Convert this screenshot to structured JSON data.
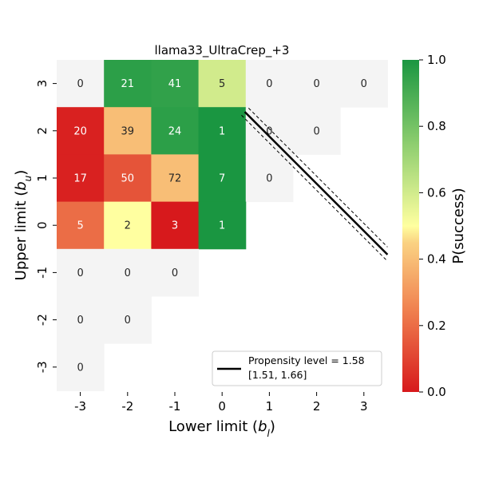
{
  "chart_data": {
    "type": "heatmap",
    "title": "llama33_UltraCrep_+3",
    "xlabel": "Lower limit (b_l)",
    "ylabel": "Upper limit (b_u)",
    "x_categories": [
      "-3",
      "-2",
      "-1",
      "0",
      "1",
      "2",
      "3"
    ],
    "y_categories": [
      "3",
      "2",
      "1",
      "0",
      "-1",
      "-2",
      "-3"
    ],
    "colorbar": {
      "label": "P(success)",
      "range": [
        0.0,
        1.0
      ],
      "ticks": [
        "0.0",
        "0.2",
        "0.4",
        "0.6",
        "0.8",
        "1.0"
      ],
      "colormap": "RdYlGn"
    },
    "cells": [
      {
        "x": "-3",
        "y": "3",
        "count": 0,
        "p": null
      },
      {
        "x": "-2",
        "y": "3",
        "count": 21,
        "p": 0.96
      },
      {
        "x": "-1",
        "y": "3",
        "count": 41,
        "p": 0.95
      },
      {
        "x": "0",
        "y": "3",
        "count": 5,
        "p": 0.6
      },
      {
        "x": "1",
        "y": "3",
        "count": 0,
        "p": null
      },
      {
        "x": "2",
        "y": "3",
        "count": 0,
        "p": null
      },
      {
        "x": "3",
        "y": "3",
        "count": 0,
        "p": null
      },
      {
        "x": "-3",
        "y": "2",
        "count": 20,
        "p": 0.02
      },
      {
        "x": "-2",
        "y": "2",
        "count": 39,
        "p": 0.4
      },
      {
        "x": "-1",
        "y": "2",
        "count": 24,
        "p": 0.96
      },
      {
        "x": "0",
        "y": "2",
        "count": 1,
        "p": 1.0
      },
      {
        "x": "1",
        "y": "2",
        "count": 0,
        "p": null
      },
      {
        "x": "2",
        "y": "2",
        "count": 0,
        "p": null
      },
      {
        "x": "-3",
        "y": "1",
        "count": 17,
        "p": 0.02
      },
      {
        "x": "-2",
        "y": "1",
        "count": 50,
        "p": 0.14
      },
      {
        "x": "-1",
        "y": "1",
        "count": 72,
        "p": 0.4
      },
      {
        "x": "0",
        "y": "1",
        "count": 7,
        "p": 1.0
      },
      {
        "x": "1",
        "y": "1",
        "count": 0,
        "p": null
      },
      {
        "x": "-3",
        "y": "0",
        "count": 5,
        "p": 0.2
      },
      {
        "x": "-2",
        "y": "0",
        "count": 2,
        "p": 0.5
      },
      {
        "x": "-1",
        "y": "0",
        "count": 3,
        "p": 0.0
      },
      {
        "x": "0",
        "y": "0",
        "count": 1,
        "p": 1.0
      },
      {
        "x": "-3",
        "y": "-1",
        "count": 0,
        "p": null
      },
      {
        "x": "-2",
        "y": "-1",
        "count": 0,
        "p": null
      },
      {
        "x": "-1",
        "y": "-1",
        "count": 0,
        "p": null
      },
      {
        "x": "-3",
        "y": "-2",
        "count": 0,
        "p": null
      },
      {
        "x": "-2",
        "y": "-2",
        "count": 0,
        "p": null
      },
      {
        "x": "-3",
        "y": "-3",
        "count": 0,
        "p": null
      }
    ],
    "empty_cell_color": "#f4f4f4",
    "propensity_line": {
      "level": 1.58,
      "ci": [
        1.51,
        1.66
      ],
      "legend_label": "Propensity level = 1.58",
      "legend_ci_label": "[1.51, 1.66]",
      "color": "#000000"
    },
    "legend_position": "lower right"
  }
}
